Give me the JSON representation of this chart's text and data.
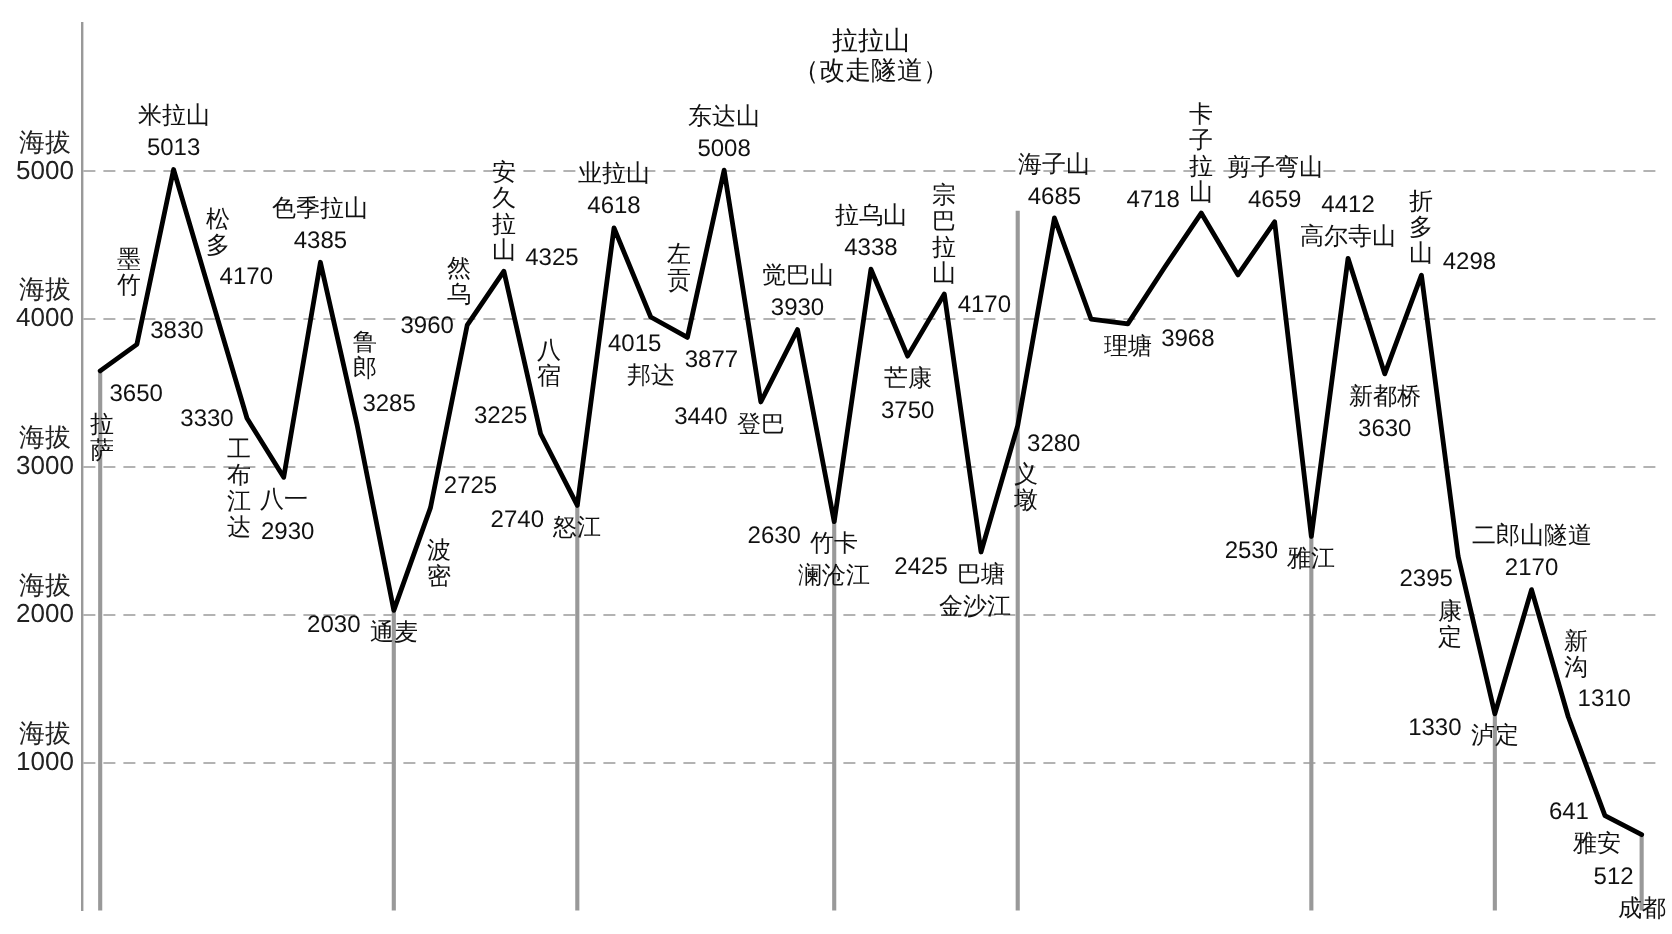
{
  "chart_data": {
    "type": "line",
    "categories": [
      null,
      null,
      null,
      null,
      null,
      null,
      null,
      null,
      null,
      null,
      null,
      null,
      null,
      null,
      null,
      null,
      null,
      null,
      null,
      null,
      null,
      null,
      null,
      null,
      null,
      null,
      null,
      null,
      null,
      null,
      null,
      null,
      null,
      null,
      null,
      null,
      null,
      null,
      null,
      null,
      null,
      null,
      null
    ],
    "series": [
      {
        "color": "#000000",
        "values": [
          3650,
          3830,
          5013,
          4170,
          3330,
          2930,
          4385,
          3285,
          2030,
          2725,
          3960,
          4325,
          3225,
          2740,
          4618,
          4015,
          3877,
          5008,
          3440,
          3930,
          2630,
          4338,
          3750,
          4170,
          2425,
          3280,
          4685,
          4000,
          3968,
          4350,
          4718,
          4300,
          4659,
          2530,
          4412,
          3630,
          4298,
          2395,
          1330,
          2170,
          1310,
          641,
          512
        ],
        "value_labels": [
          "3650",
          "3830",
          "5013",
          "4170",
          "3330",
          "2930",
          "4385",
          "3285",
          "2030",
          "2725",
          "3960",
          "4325",
          "3225",
          "2740",
          "4618",
          "4015",
          "3877",
          "5008",
          "3440",
          "3930",
          "2630",
          "4338",
          "3750",
          "4170",
          "2425",
          "3280",
          "4685",
          null,
          "3968",
          null,
          "4718",
          null,
          "4659",
          "2530",
          "4412",
          "3630",
          "4298",
          "2395",
          "1330",
          "2170",
          "1310",
          "641",
          "512"
        ]
      },
      {
        "type": "bar",
        "color": "#999999",
        "values": [
          3650,
          null,
          null,
          null,
          null,
          null,
          null,
          null,
          2030,
          null,
          null,
          null,
          null,
          2740,
          null,
          null,
          null,
          null,
          null,
          null,
          2630,
          null,
          null,
          null,
          null,
          4730,
          null,
          null,
          null,
          null,
          null,
          null,
          null,
          2530,
          null,
          null,
          null,
          null,
          1330,
          null,
          null,
          null,
          512
        ]
      }
    ],
    "ylabel": "海拔",
    "ylim": [
      0,
      6000
    ],
    "yticks": [
      1000,
      2000,
      3000,
      4000,
      5000
    ],
    "grid": "y",
    "tick_labels": "y",
    "annotations": [
      {
        "text": "拉萨",
        "y": 3650
      },
      {
        "text": "墨竹",
        "y": 3830
      },
      {
        "text": "米拉山",
        "y": 5013
      },
      {
        "text": "松多",
        "y": 4170
      },
      {
        "text": "工布江达",
        "y": 3330
      },
      {
        "text": "八一",
        "y": 2930
      },
      {
        "text": "色季拉山",
        "y": 4385
      },
      {
        "text": "鲁郎",
        "y": 3285
      },
      {
        "text": "通麦",
        "y": 2030
      },
      {
        "text": "波密",
        "y": 2725
      },
      {
        "text": "然乌",
        "y": 3960
      },
      {
        "text": "安久拉山",
        "y": 4325
      },
      {
        "text": "八宿",
        "y": 3225
      },
      {
        "text": "怒江",
        "y": 2740
      },
      {
        "text": "业拉山",
        "y": 4618
      },
      {
        "text": "邦达",
        "y": 4015
      },
      {
        "text": "左贡",
        "y": 3877
      },
      {
        "text": "东达山",
        "y": 5008
      },
      {
        "text": "登巴",
        "y": 3440
      },
      {
        "text": "觉巴山",
        "y": 3930
      },
      {
        "text": "竹卡",
        "y": 2630
      },
      {
        "text": "澜沧江",
        "y": 2630
      },
      {
        "text": "拉乌山",
        "y": 4338
      },
      {
        "text": "芒康",
        "y": 3750
      },
      {
        "text": "宗巴拉山",
        "y": 4170
      },
      {
        "text": "巴塘",
        "y": 2425
      },
      {
        "text": "金沙江",
        "y": 2425
      },
      {
        "text": "义墩",
        "y": 3280
      },
      {
        "text": "海子山",
        "y": 4685
      },
      {
        "text": "理塘",
        "y": 3968
      },
      {
        "text": "卡子拉山",
        "y": 4718
      },
      {
        "text": "剪子弯山",
        "y": 4659
      },
      {
        "text": "雅江",
        "y": 2530
      },
      {
        "text": "高尔寺山",
        "y": 4412
      },
      {
        "text": "新都桥",
        "y": 3630
      },
      {
        "text": "折多山",
        "y": 4298
      },
      {
        "text": "康定",
        "y": 2395
      },
      {
        "text": "泸定",
        "y": 1330
      },
      {
        "text": "二郎山隧道",
        "y": 2170
      },
      {
        "text": "新沟",
        "y": 1310
      },
      {
        "text": "雅安",
        "y": 641
      },
      {
        "text": "成都",
        "y": 512
      },
      "拉拉山（改走隧道）"
    ]
  }
}
